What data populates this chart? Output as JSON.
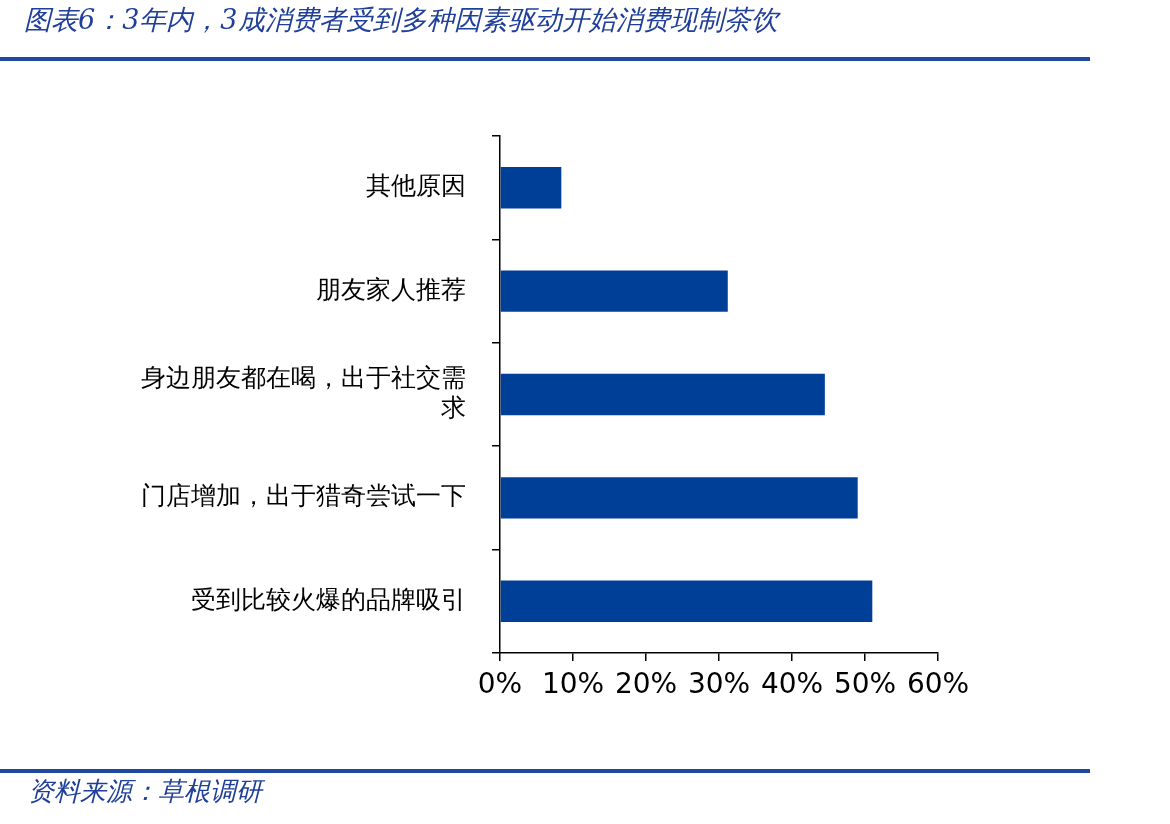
{
  "chart_data": {
    "type": "bar",
    "orientation": "horizontal",
    "title": "图表6：3年内，3成消费者受到多种因素驱动开始消费现制茶饮",
    "categories": [
      "其他原因",
      "朋友家人推荐",
      "身边朋友都在喝，出于社交需求",
      "门店增加，出于猎奇尝试一下",
      "受到比较火爆的品牌吸引"
    ],
    "values": [
      8.4,
      31.2,
      44.5,
      49.0,
      51.0
    ],
    "color": "#003f98",
    "xlim": [
      0,
      60
    ],
    "xticks": [
      {
        "value": 0,
        "label": "0%"
      },
      {
        "value": 10,
        "label": "10%"
      },
      {
        "value": 20,
        "label": "20%"
      },
      {
        "value": 30,
        "label": "30%"
      },
      {
        "value": 40,
        "label": "40%"
      },
      {
        "value": 50,
        "label": "50%"
      },
      {
        "value": 60,
        "label": "60%"
      }
    ],
    "grid": false,
    "legend": false,
    "annotations": [
      "资料来源：草根调研"
    ]
  }
}
